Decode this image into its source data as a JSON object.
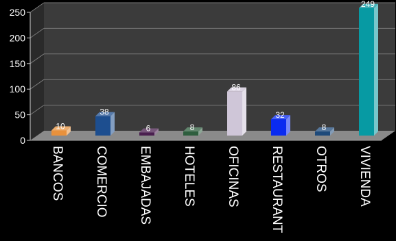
{
  "chart_data": {
    "type": "bar",
    "title": "",
    "xlabel": "",
    "ylabel": "",
    "ylim": [
      0,
      250
    ],
    "yticks": [
      0,
      50,
      100,
      150,
      200,
      250
    ],
    "grid": true,
    "legend": "none",
    "categories": [
      "BANCOS",
      "COMERCIO",
      "EMBAJADAS",
      "HOTELES",
      "OFICINAS",
      "RESTAURANT",
      "OTROS",
      "VIVIENDA"
    ],
    "values": [
      10,
      38,
      6,
      8,
      86,
      32,
      8,
      249
    ],
    "colors": [
      "#e8913c",
      "#1d4e8f",
      "#4a1f4f",
      "#2e5e3e",
      "#cfc6d8",
      "#0a2bf0",
      "#1e4a7a",
      "#079aa3"
    ]
  }
}
